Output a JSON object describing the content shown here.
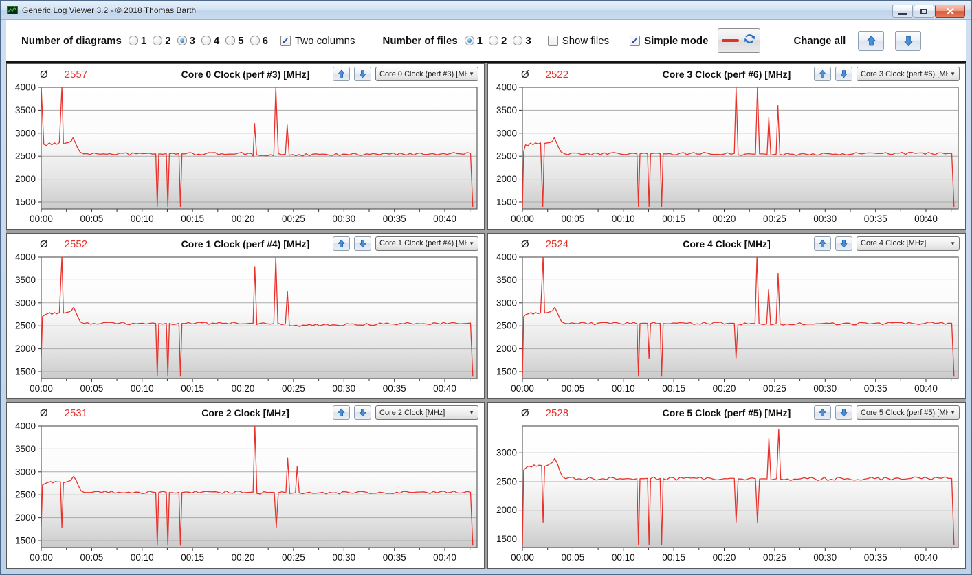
{
  "window": {
    "title": "Generic Log Viewer 3.2 - © 2018 Thomas Barth"
  },
  "toolbar": {
    "number_of_diagrams_label": "Number of diagrams",
    "diagram_options": [
      "1",
      "2",
      "3",
      "4",
      "5",
      "6"
    ],
    "diagrams_selected": "3",
    "two_columns_label": "Two columns",
    "two_columns_checked": true,
    "number_of_files_label": "Number of files",
    "file_options": [
      "1",
      "2",
      "3"
    ],
    "files_selected": "1",
    "show_files_label": "Show files",
    "show_files_checked": false,
    "simple_mode_label": "Simple mode",
    "simple_mode_checked": true,
    "change_all_label": "Change all"
  },
  "charts_common": {
    "avg_symbol": "Ø",
    "line_color": "#e8312b",
    "avg_color": "#e8312b",
    "grid_color": "#ababab",
    "x_axis_unit": "hh:mm"
  },
  "chart_data": [
    {
      "type": "line",
      "title": "Core 0 Clock (perf #3) [MHz]",
      "average": "2557",
      "dropdown_value": "Core 0 Clock (perf #3) [MH",
      "xlim": [
        0,
        43.2
      ],
      "ylim": [
        1350,
        4000
      ],
      "yticks": [
        1500,
        2000,
        2500,
        3000,
        3500,
        4000
      ],
      "xtick_labels": [
        "00:00",
        "00:05",
        "00:10",
        "00:15",
        "00:20",
        "00:25",
        "00:30",
        "00:35",
        "00:40"
      ],
      "points": [
        [
          0,
          4000
        ],
        [
          0.25,
          2760
        ],
        [
          0.5,
          2730
        ],
        [
          0.8,
          2790
        ],
        [
          1.05,
          2745
        ],
        [
          1.3,
          2790
        ],
        [
          1.55,
          2760
        ],
        [
          1.8,
          2795
        ],
        [
          2.05,
          4000
        ],
        [
          2.2,
          2770
        ],
        [
          2.5,
          2790
        ],
        [
          2.75,
          2800
        ],
        [
          3,
          2835
        ],
        [
          3.15,
          2900
        ],
        [
          3.35,
          2810
        ],
        [
          3.6,
          2680
        ],
        [
          3.85,
          2590
        ],
        [
          4.2,
          2550
        ],
        [
          11.35,
          2550
        ],
        [
          11.5,
          1400
        ],
        [
          11.65,
          2550
        ],
        [
          12.4,
          2555
        ],
        [
          12.55,
          1400
        ],
        [
          12.7,
          2550
        ],
        [
          13.65,
          2555
        ],
        [
          13.8,
          1400
        ],
        [
          13.95,
          2550
        ],
        [
          20.85,
          2555
        ],
        [
          21,
          2500
        ],
        [
          21.15,
          3210
        ],
        [
          21.35,
          2530
        ],
        [
          23.05,
          2510
        ],
        [
          23.25,
          4000
        ],
        [
          23.5,
          2555
        ],
        [
          24.2,
          2545
        ],
        [
          24.38,
          3180
        ],
        [
          24.58,
          2520
        ],
        [
          42.55,
          2560
        ],
        [
          42.78,
          1400
        ]
      ]
    },
    {
      "type": "line",
      "title": "Core 3 Clock (perf #6) [MHz]",
      "average": "2522",
      "dropdown_value": "Core 3 Clock (perf #6) [MH",
      "xlim": [
        0,
        43.2
      ],
      "ylim": [
        1350,
        4000
      ],
      "yticks": [
        1500,
        2000,
        2500,
        3000,
        3500,
        4000
      ],
      "xtick_labels": [
        "00:00",
        "00:05",
        "00:10",
        "00:15",
        "00:20",
        "00:25",
        "00:30",
        "00:35",
        "00:40"
      ],
      "points": [
        [
          0,
          1400
        ],
        [
          0.12,
          2590
        ],
        [
          0.3,
          2745
        ],
        [
          0.55,
          2730
        ],
        [
          0.8,
          2785
        ],
        [
          1.05,
          2750
        ],
        [
          1.3,
          2790
        ],
        [
          1.55,
          2765
        ],
        [
          1.8,
          2790
        ],
        [
          2.02,
          1400
        ],
        [
          2.18,
          2780
        ],
        [
          2.5,
          2790
        ],
        [
          2.75,
          2800
        ],
        [
          3,
          2830
        ],
        [
          3.15,
          2900
        ],
        [
          3.35,
          2810
        ],
        [
          3.6,
          2680
        ],
        [
          3.85,
          2590
        ],
        [
          4.2,
          2550
        ],
        [
          11.35,
          2550
        ],
        [
          11.5,
          1400
        ],
        [
          11.65,
          2550
        ],
        [
          12.4,
          2555
        ],
        [
          12.55,
          1400
        ],
        [
          12.7,
          2550
        ],
        [
          13.65,
          2555
        ],
        [
          13.8,
          1400
        ],
        [
          13.95,
          2550
        ],
        [
          21,
          2560
        ],
        [
          21.18,
          4000
        ],
        [
          21.38,
          2530
        ],
        [
          23.1,
          2545
        ],
        [
          23.3,
          4000
        ],
        [
          23.5,
          2550
        ],
        [
          24.25,
          2540
        ],
        [
          24.42,
          3340
        ],
        [
          24.62,
          2525
        ],
        [
          25.15,
          2545
        ],
        [
          25.32,
          3600
        ],
        [
          25.52,
          2540
        ],
        [
          42.55,
          2560
        ],
        [
          42.78,
          1400
        ]
      ]
    },
    {
      "type": "line",
      "title": "Core 1 Clock (perf #4) [MHz]",
      "average": "2552",
      "dropdown_value": "Core 1 Clock (perf #4) [MH",
      "xlim": [
        0,
        43.2
      ],
      "ylim": [
        1350,
        4000
      ],
      "yticks": [
        1500,
        2000,
        2500,
        3000,
        3500,
        4000
      ],
      "xtick_labels": [
        "00:00",
        "00:05",
        "00:10",
        "00:15",
        "00:20",
        "00:25",
        "00:30",
        "00:35",
        "00:40"
      ],
      "points": [
        [
          0,
          1800
        ],
        [
          0.12,
          2700
        ],
        [
          0.35,
          2740
        ],
        [
          0.6,
          2762
        ],
        [
          0.85,
          2788
        ],
        [
          1.05,
          2752
        ],
        [
          1.3,
          2790
        ],
        [
          1.55,
          2762
        ],
        [
          1.8,
          2788
        ],
        [
          2.05,
          4000
        ],
        [
          2.2,
          2775
        ],
        [
          2.5,
          2792
        ],
        [
          2.75,
          2802
        ],
        [
          3,
          2832
        ],
        [
          3.2,
          2900
        ],
        [
          3.4,
          2815
        ],
        [
          3.65,
          2680
        ],
        [
          3.9,
          2580
        ],
        [
          4.25,
          2550
        ],
        [
          11.35,
          2550
        ],
        [
          11.5,
          1400
        ],
        [
          11.65,
          2550
        ],
        [
          12.4,
          2555
        ],
        [
          12.55,
          1400
        ],
        [
          12.7,
          2550
        ],
        [
          13.65,
          2555
        ],
        [
          13.8,
          1400
        ],
        [
          13.95,
          2550
        ],
        [
          21,
          2555
        ],
        [
          21.17,
          3790
        ],
        [
          21.37,
          2530
        ],
        [
          23.05,
          2548
        ],
        [
          23.25,
          4000
        ],
        [
          23.45,
          2556
        ],
        [
          24.2,
          2540
        ],
        [
          24.4,
          3250
        ],
        [
          24.6,
          2505
        ],
        [
          42.55,
          2560
        ],
        [
          42.78,
          1400
        ]
      ]
    },
    {
      "type": "line",
      "title": "Core 4 Clock [MHz]",
      "average": "2524",
      "dropdown_value": "Core 4 Clock [MHz]",
      "xlim": [
        0,
        43.2
      ],
      "ylim": [
        1350,
        4000
      ],
      "yticks": [
        1500,
        2000,
        2500,
        3000,
        3500,
        4000
      ],
      "xtick_labels": [
        "00:00",
        "00:05",
        "00:10",
        "00:15",
        "00:20",
        "00:25",
        "00:30",
        "00:35",
        "00:40"
      ],
      "points": [
        [
          0,
          1400
        ],
        [
          0.12,
          2700
        ],
        [
          0.35,
          2745
        ],
        [
          0.6,
          2765
        ],
        [
          0.85,
          2790
        ],
        [
          1.05,
          2755
        ],
        [
          1.3,
          2790
        ],
        [
          1.55,
          2765
        ],
        [
          1.8,
          2785
        ],
        [
          2.05,
          4000
        ],
        [
          2.2,
          2780
        ],
        [
          2.5,
          2790
        ],
        [
          2.75,
          2805
        ],
        [
          3,
          2835
        ],
        [
          3.2,
          2900
        ],
        [
          3.4,
          2815
        ],
        [
          3.65,
          2685
        ],
        [
          3.9,
          2585
        ],
        [
          4.25,
          2550
        ],
        [
          11.35,
          2545
        ],
        [
          11.5,
          1400
        ],
        [
          11.65,
          2550
        ],
        [
          12.4,
          2555
        ],
        [
          12.55,
          1780
        ],
        [
          12.7,
          2550
        ],
        [
          13.65,
          2555
        ],
        [
          13.8,
          1400
        ],
        [
          13.95,
          2550
        ],
        [
          21,
          2555
        ],
        [
          21.17,
          1790
        ],
        [
          21.37,
          2540
        ],
        [
          23.05,
          2550
        ],
        [
          23.25,
          4000
        ],
        [
          23.45,
          2548
        ],
        [
          24.2,
          2538
        ],
        [
          24.4,
          3290
        ],
        [
          24.6,
          2520
        ],
        [
          25.15,
          2548
        ],
        [
          25.34,
          3640
        ],
        [
          25.54,
          2538
        ],
        [
          42.55,
          2555
        ],
        [
          42.78,
          1400
        ]
      ]
    },
    {
      "type": "line",
      "title": "Core 2 Clock [MHz]",
      "average": "2531",
      "dropdown_value": "Core 2 Clock [MHz]",
      "xlim": [
        0,
        43.2
      ],
      "ylim": [
        1350,
        4000
      ],
      "yticks": [
        1500,
        2000,
        2500,
        3000,
        3500,
        4000
      ],
      "xtick_labels": [
        "00:00",
        "00:05",
        "00:10",
        "00:15",
        "00:20",
        "00:25",
        "00:30",
        "00:35",
        "00:40"
      ],
      "points": [
        [
          0,
          1800
        ],
        [
          0.12,
          2710
        ],
        [
          0.4,
          2748
        ],
        [
          0.7,
          2772
        ],
        [
          0.95,
          2790
        ],
        [
          1.15,
          2762
        ],
        [
          1.4,
          2790
        ],
        [
          1.65,
          2780
        ],
        [
          1.9,
          2786
        ],
        [
          2.05,
          1790
        ],
        [
          2.2,
          2765
        ],
        [
          2.6,
          2788
        ],
        [
          2.9,
          2812
        ],
        [
          3.2,
          2900
        ],
        [
          3.45,
          2822
        ],
        [
          3.7,
          2690
        ],
        [
          3.95,
          2585
        ],
        [
          4.3,
          2550
        ],
        [
          11.35,
          2550
        ],
        [
          11.5,
          1400
        ],
        [
          11.65,
          2550
        ],
        [
          12.4,
          2555
        ],
        [
          12.55,
          1400
        ],
        [
          12.7,
          2550
        ],
        [
          13.65,
          2555
        ],
        [
          13.8,
          1400
        ],
        [
          13.95,
          2550
        ],
        [
          21,
          2560
        ],
        [
          21.18,
          4000
        ],
        [
          21.38,
          2530
        ],
        [
          23.1,
          2552
        ],
        [
          23.3,
          1790
        ],
        [
          23.5,
          2548
        ],
        [
          24.25,
          2546
        ],
        [
          24.43,
          3310
        ],
        [
          24.63,
          2530
        ],
        [
          25.2,
          2546
        ],
        [
          25.37,
          3110
        ],
        [
          25.57,
          2542
        ],
        [
          42.55,
          2555
        ],
        [
          42.78,
          1400
        ]
      ]
    },
    {
      "type": "line",
      "title": "Core 5 Clock (perf #5) [MHz]",
      "average": "2528",
      "dropdown_value": "Core 5 Clock (perf #5) [MH",
      "xlim": [
        0,
        43.2
      ],
      "ylim": [
        1350,
        3470
      ],
      "yticks": [
        1500,
        2000,
        2500,
        3000
      ],
      "xtick_labels": [
        "00:00",
        "00:05",
        "00:10",
        "00:15",
        "00:20",
        "00:25",
        "00:30",
        "00:35",
        "00:40"
      ],
      "points": [
        [
          0,
          1400
        ],
        [
          0.12,
          2700
        ],
        [
          0.4,
          2748
        ],
        [
          0.65,
          2772
        ],
        [
          0.9,
          2752
        ],
        [
          1.15,
          2790
        ],
        [
          1.4,
          2766
        ],
        [
          1.65,
          2786
        ],
        [
          1.9,
          2780
        ],
        [
          2.05,
          1790
        ],
        [
          2.2,
          2766
        ],
        [
          2.6,
          2792
        ],
        [
          2.95,
          2832
        ],
        [
          3.2,
          2905
        ],
        [
          3.45,
          2820
        ],
        [
          3.7,
          2690
        ],
        [
          3.95,
          2585
        ],
        [
          4.3,
          2550
        ],
        [
          11.35,
          2550
        ],
        [
          11.5,
          1400
        ],
        [
          11.65,
          2550
        ],
        [
          12.4,
          2555
        ],
        [
          12.55,
          1400
        ],
        [
          12.7,
          2550
        ],
        [
          13.65,
          2555
        ],
        [
          13.8,
          1400
        ],
        [
          13.95,
          2550
        ],
        [
          21,
          2555
        ],
        [
          21.18,
          1790
        ],
        [
          21.38,
          2546
        ],
        [
          23.1,
          2550
        ],
        [
          23.3,
          1790
        ],
        [
          23.5,
          2546
        ],
        [
          24.25,
          2546
        ],
        [
          24.43,
          3260
        ],
        [
          24.63,
          2530
        ],
        [
          25.2,
          2550
        ],
        [
          25.4,
          3410
        ],
        [
          25.6,
          2542
        ],
        [
          42.55,
          2555
        ],
        [
          42.78,
          1400
        ]
      ]
    }
  ]
}
